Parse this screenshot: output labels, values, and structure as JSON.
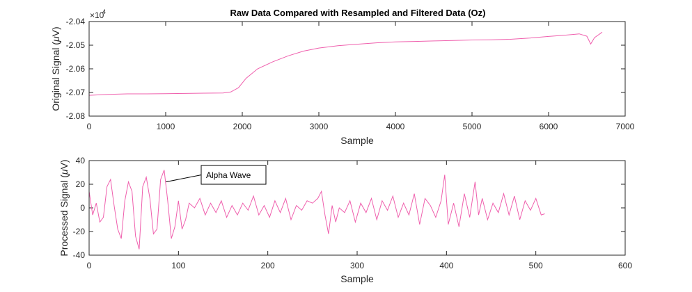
{
  "figure": {
    "line_color": "#ef5fad",
    "axis_color": "#262626"
  },
  "chart_data": [
    {
      "type": "line",
      "title": "Raw Data Compared with Resampled and Filtered Data (Oz)",
      "xlabel": "Sample",
      "ylabel_prefix": "Original Signal (",
      "ylabel_mu": "μ",
      "ylabel_suffix": "V)",
      "exponent_base": "×10",
      "exponent_power": "4",
      "xlim": [
        0,
        7000
      ],
      "ylim": [
        -20800,
        -20400
      ],
      "xticks": [
        0,
        1000,
        2000,
        3000,
        4000,
        5000,
        6000,
        7000
      ],
      "xtick_labels": [
        "0",
        "1000",
        "2000",
        "3000",
        "4000",
        "5000",
        "6000",
        "7000"
      ],
      "yticks": [
        -20800,
        -20700,
        -20600,
        -20500,
        -20400
      ],
      "ytick_labels": [
        "-2.08",
        "-2.07",
        "-2.06",
        "-2.05",
        "-2.04"
      ],
      "grid": false,
      "series": [
        {
          "x": [
            0,
            250,
            500,
            750,
            1000,
            1250,
            1500,
            1750,
            1850,
            1950,
            2050,
            2200,
            2400,
            2600,
            2800,
            3000,
            3250,
            3500,
            3750,
            4000,
            4250,
            4500,
            4750,
            5000,
            5250,
            5500,
            5750,
            6000,
            6200,
            6400,
            6500,
            6550,
            6600,
            6700
          ],
          "y": [
            -20712,
            -20708,
            -20706,
            -20706,
            -20705,
            -20704,
            -20703,
            -20702,
            -20698,
            -20680,
            -20640,
            -20600,
            -20570,
            -20545,
            -20525,
            -20512,
            -20502,
            -20496,
            -20490,
            -20486,
            -20484,
            -20482,
            -20480,
            -20478,
            -20477,
            -20475,
            -20470,
            -20463,
            -20458,
            -20452,
            -20462,
            -20495,
            -20468,
            -20445
          ]
        }
      ]
    },
    {
      "type": "line",
      "title": "",
      "xlabel": "Sample",
      "ylabel_prefix": "Processed Signal (",
      "ylabel_mu": "μ",
      "ylabel_suffix": "V)",
      "xlim": [
        0,
        600
      ],
      "ylim": [
        -40,
        40
      ],
      "xticks": [
        0,
        100,
        200,
        300,
        400,
        500,
        600
      ],
      "xtick_labels": [
        "0",
        "100",
        "200",
        "300",
        "400",
        "500",
        "600"
      ],
      "yticks": [
        -40,
        -20,
        0,
        20,
        40
      ],
      "ytick_labels": [
        "-40",
        "-20",
        "0",
        "20",
        "40"
      ],
      "grid": false,
      "annotation": {
        "text": "Alpha Wave",
        "x": 86,
        "y": 22
      },
      "series": [
        {
          "x": [
            0,
            4,
            8,
            12,
            16,
            20,
            24,
            28,
            32,
            36,
            40,
            44,
            48,
            52,
            56,
            60,
            64,
            68,
            72,
            76,
            80,
            84,
            88,
            92,
            96,
            100,
            104,
            108,
            112,
            118,
            124,
            130,
            136,
            142,
            148,
            154,
            160,
            166,
            172,
            178,
            184,
            190,
            196,
            202,
            208,
            214,
            220,
            226,
            232,
            238,
            244,
            250,
            256,
            260,
            264,
            268,
            272,
            276,
            280,
            286,
            292,
            298,
            304,
            310,
            316,
            322,
            328,
            334,
            340,
            346,
            352,
            358,
            364,
            370,
            376,
            382,
            388,
            394,
            398,
            402,
            408,
            414,
            420,
            426,
            432,
            436,
            440,
            446,
            452,
            458,
            464,
            470,
            476,
            482,
            488,
            494,
            500,
            506,
            510
          ],
          "y": [
            14,
            -6,
            4,
            -12,
            -8,
            18,
            24,
            2,
            -18,
            -26,
            6,
            22,
            14,
            -24,
            -35,
            18,
            26,
            8,
            -22,
            -18,
            24,
            32,
            6,
            -26,
            -16,
            6,
            -18,
            -10,
            4,
            0,
            8,
            -6,
            4,
            -4,
            6,
            -8,
            2,
            -6,
            4,
            -2,
            10,
            -6,
            2,
            -8,
            6,
            -4,
            8,
            -10,
            2,
            -2,
            6,
            4,
            8,
            14,
            -6,
            -22,
            2,
            -12,
            0,
            -4,
            6,
            -12,
            4,
            -4,
            8,
            -10,
            6,
            -2,
            10,
            -8,
            4,
            -6,
            12,
            -14,
            8,
            2,
            -8,
            6,
            28,
            -14,
            4,
            -16,
            12,
            -8,
            22,
            -6,
            8,
            -10,
            4,
            -4,
            12,
            -6,
            10,
            -10,
            6,
            -2,
            8,
            -6,
            -5
          ]
        }
      ]
    }
  ]
}
